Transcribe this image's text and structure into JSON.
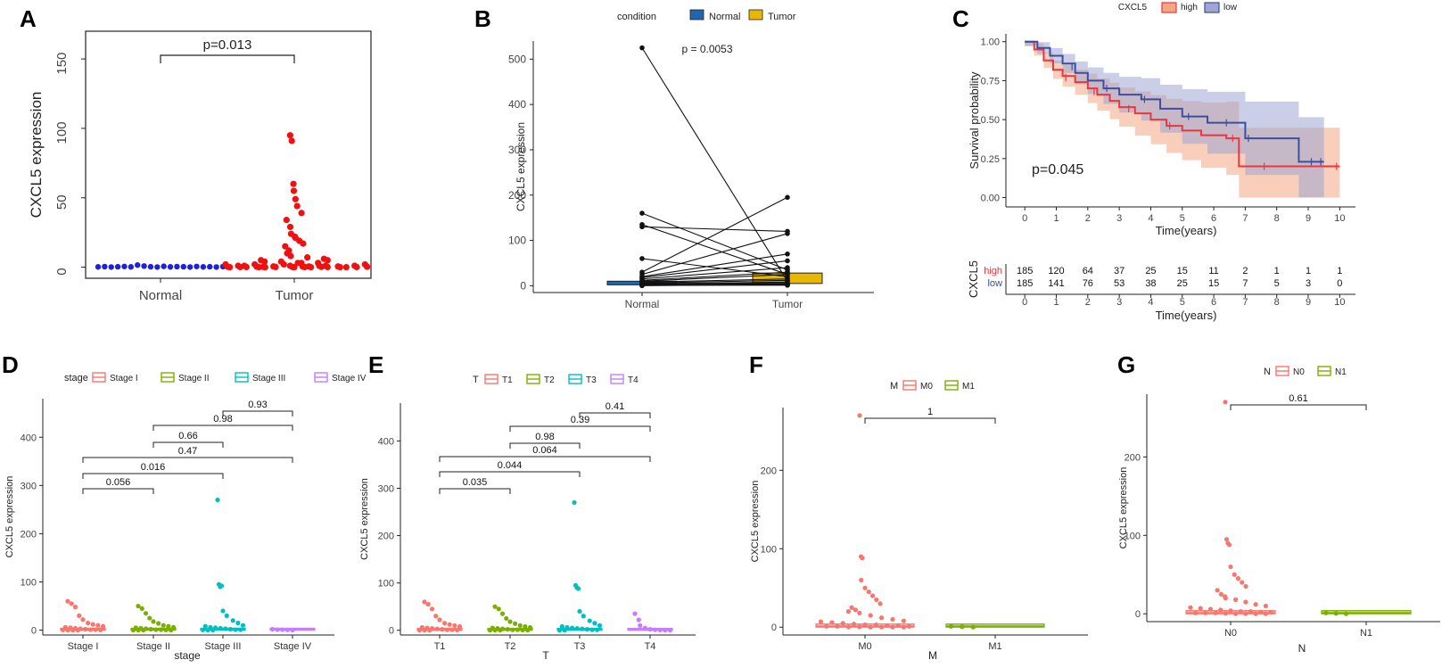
{
  "colors": {
    "blue": "#1f1fe0",
    "red": "#f01010",
    "normal_fill": "#2166ac",
    "tumor_fill": "#e6b800",
    "km_high": "#e8373f",
    "km_low": "#3b4fa0",
    "km_high_band": "#f4a582",
    "km_low_band": "#9fa6d4",
    "g1": "#f8766d",
    "g2": "#7cae00",
    "g3": "#00bfc4",
    "g4": "#c77cff"
  },
  "chart_data": [
    {
      "panel": "A",
      "type": "scatter",
      "title": "",
      "xlabel": "",
      "ylabel": "CXCL5 expression",
      "categories": [
        "Normal",
        "Tumor"
      ],
      "ylim": [
        -8,
        170
      ],
      "yticks": [
        0,
        50,
        100,
        150
      ],
      "pvalue_label": "p=0.013",
      "normal_values": [
        0.2,
        0.4,
        0.1,
        0.3,
        0.5,
        0.2,
        1.5,
        0.8,
        0.3,
        0.1,
        0.6,
        0.2,
        0.4,
        0.3,
        0.1,
        0.5,
        0.2,
        0.3,
        0.1,
        0.4
      ],
      "tumor_values": [
        95,
        91,
        60,
        55,
        49,
        44,
        39,
        34,
        29,
        24,
        22,
        21,
        19,
        17,
        15,
        12,
        10,
        8,
        7,
        6,
        5,
        5,
        4,
        4,
        3,
        3,
        3,
        2,
        2,
        2,
        2,
        1,
        1,
        1,
        1,
        1,
        1,
        0.5,
        0.5,
        0.5,
        0.5,
        0.3,
        0.3,
        0.3,
        0.2,
        0.2,
        0.2,
        0.1,
        0.1,
        0.1,
        0.1,
        0.1,
        0.1,
        0,
        0,
        0,
        0,
        0,
        0,
        0
      ]
    },
    {
      "panel": "B",
      "type": "line",
      "title": "",
      "xlabel": "",
      "ylabel": "CXCL5 expression",
      "categories": [
        "Normal",
        "Tumor"
      ],
      "legend_title": "condition",
      "legend": [
        "Normal",
        "Tumor"
      ],
      "ylim": [
        -15,
        540
      ],
      "yticks": [
        0,
        100,
        200,
        300,
        400,
        500
      ],
      "pvalue_label": "p = 0.0053",
      "box_normal": [
        2,
        10
      ],
      "box_tumor": [
        5,
        28
      ],
      "pairs": [
        [
          525,
          10
        ],
        [
          160,
          35
        ],
        [
          135,
          25
        ],
        [
          130,
          120
        ],
        [
          60,
          20
        ],
        [
          30,
          195
        ],
        [
          25,
          115
        ],
        [
          20,
          70
        ],
        [
          18,
          55
        ],
        [
          15,
          40
        ],
        [
          12,
          30
        ],
        [
          10,
          25
        ],
        [
          8,
          15
        ],
        [
          6,
          12
        ],
        [
          5,
          5
        ],
        [
          4,
          8
        ],
        [
          3,
          2
        ],
        [
          2,
          4
        ],
        [
          1,
          1
        ],
        [
          0,
          3
        ]
      ]
    },
    {
      "panel": "C",
      "type": "line",
      "title": "",
      "xlabel": "Time(years)",
      "ylabel": "Survival probability",
      "legend_title": "CXCL5",
      "legend": [
        "high",
        "low"
      ],
      "xlim": [
        0,
        10
      ],
      "xticks": [
        0,
        1,
        2,
        3,
        4,
        5,
        6,
        7,
        8,
        9,
        10
      ],
      "ylim": [
        0,
        1
      ],
      "yticks": [
        "0.00",
        "0.25",
        "0.50",
        "0.75",
        "1.00"
      ],
      "pvalue_label": "p=0.045",
      "high_steps": [
        [
          0,
          1.0
        ],
        [
          0.3,
          0.95
        ],
        [
          0.6,
          0.88
        ],
        [
          0.9,
          0.82
        ],
        [
          1.2,
          0.78
        ],
        [
          1.6,
          0.74
        ],
        [
          2.0,
          0.7
        ],
        [
          2.3,
          0.66
        ],
        [
          2.7,
          0.62
        ],
        [
          3.0,
          0.58
        ],
        [
          3.5,
          0.54
        ],
        [
          4.0,
          0.5
        ],
        [
          4.5,
          0.46
        ],
        [
          5.0,
          0.43
        ],
        [
          5.6,
          0.4
        ],
        [
          6.4,
          0.38
        ],
        [
          6.8,
          0.2
        ],
        [
          10,
          0.2
        ]
      ],
      "low_steps": [
        [
          0,
          1.0
        ],
        [
          0.4,
          0.96
        ],
        [
          0.8,
          0.91
        ],
        [
          1.2,
          0.86
        ],
        [
          1.6,
          0.8
        ],
        [
          2.0,
          0.75
        ],
        [
          2.5,
          0.7
        ],
        [
          3.0,
          0.66
        ],
        [
          3.7,
          0.63
        ],
        [
          4.3,
          0.57
        ],
        [
          5.0,
          0.52
        ],
        [
          5.8,
          0.48
        ],
        [
          7.0,
          0.38
        ],
        [
          8.7,
          0.23
        ],
        [
          9.5,
          0.23
        ]
      ],
      "risk_table": {
        "title": "CXCL5",
        "xlabel": "Time(years)",
        "rows": [
          {
            "label": "high",
            "counts": [
              "185",
              "120",
              "64",
              "37",
              "25",
              "15",
              "11",
              "2",
              "1",
              "1",
              "1"
            ]
          },
          {
            "label": "low",
            "counts": [
              "185",
              "141",
              "76",
              "53",
              "38",
              "25",
              "15",
              "7",
              "5",
              "3",
              "0"
            ]
          }
        ]
      }
    },
    {
      "panel": "D",
      "type": "scatter",
      "title": "",
      "xlabel": "stage",
      "ylabel": "CXCL5 expression",
      "legend_title": "stage",
      "legend": [
        "Stage I",
        "Stage II",
        "Stage III",
        "Stage IV"
      ],
      "categories": [
        "Stage I",
        "Stage II",
        "Stage III",
        "Stage IV"
      ],
      "ylim": [
        -10,
        480
      ],
      "yticks": [
        0,
        100,
        200,
        300,
        400
      ],
      "comparisons": [
        {
          "from": 2,
          "to": 3,
          "label": "0.93"
        },
        {
          "from": 1,
          "to": 3,
          "label": "0.98"
        },
        {
          "from": 1,
          "to": 2,
          "label": "0.66"
        },
        {
          "from": 0,
          "to": 3,
          "label": "0.47"
        },
        {
          "from": 0,
          "to": 2,
          "label": "0.016"
        },
        {
          "from": 0,
          "to": 1,
          "label": "0.056"
        }
      ],
      "values": [
        [
          60,
          55,
          48,
          30,
          22,
          15,
          12,
          10,
          8,
          6,
          5,
          4,
          3,
          2,
          1,
          1,
          0.5,
          0.5,
          0,
          0,
          0
        ],
        [
          50,
          45,
          35,
          25,
          18,
          14,
          10,
          8,
          6,
          5,
          4,
          3,
          2,
          1,
          1,
          0.5,
          0,
          0,
          0,
          0
        ],
        [
          270,
          95,
          90,
          92,
          40,
          30,
          20,
          15,
          10,
          8,
          6,
          5,
          4,
          3,
          2,
          1,
          1,
          0.5,
          0,
          0
        ],
        [
          2,
          1,
          1,
          0.5,
          0
        ]
      ]
    },
    {
      "panel": "E",
      "type": "scatter",
      "title": "",
      "xlabel": "T",
      "ylabel": "CXCL5 expression",
      "legend_title": "T",
      "legend": [
        "T1",
        "T2",
        "T3",
        "T4"
      ],
      "categories": [
        "T1",
        "T2",
        "T3",
        "T4"
      ],
      "ylim": [
        -10,
        480
      ],
      "yticks": [
        0,
        100,
        200,
        300,
        400
      ],
      "comparisons": [
        {
          "from": 2,
          "to": 3,
          "label": "0.41"
        },
        {
          "from": 1,
          "to": 3,
          "label": "0.39"
        },
        {
          "from": 1,
          "to": 2,
          "label": "0.98"
        },
        {
          "from": 0,
          "to": 3,
          "label": "0.064"
        },
        {
          "from": 0,
          "to": 2,
          "label": "0.044"
        },
        {
          "from": 0,
          "to": 1,
          "label": "0.035"
        }
      ],
      "values": [
        [
          60,
          55,
          45,
          30,
          22,
          15,
          12,
          10,
          8,
          6,
          5,
          4,
          3,
          2,
          1,
          1,
          0.5,
          0,
          0,
          0
        ],
        [
          50,
          45,
          35,
          25,
          18,
          14,
          10,
          8,
          6,
          5,
          4,
          3,
          2,
          1,
          1,
          0.5,
          0,
          0,
          0,
          0
        ],
        [
          270,
          95,
          90,
          88,
          40,
          30,
          20,
          15,
          10,
          8,
          6,
          5,
          4,
          3,
          2,
          1,
          1,
          0,
          0
        ],
        [
          35,
          22,
          10,
          5,
          2,
          1,
          0.5,
          0,
          0
        ]
      ]
    },
    {
      "panel": "F",
      "type": "scatter",
      "title": "",
      "xlabel": "M",
      "ylabel": "CXCL5 expression",
      "legend_title": "M",
      "legend": [
        "M0",
        "M1"
      ],
      "categories": [
        "M0",
        "M1"
      ],
      "ylim": [
        -10,
        280
      ],
      "yticks": [
        0,
        100,
        200
      ],
      "comparisons": [
        {
          "from": 0,
          "to": 1,
          "label": "1"
        }
      ],
      "values": [
        [
          270,
          90,
          88,
          60,
          50,
          45,
          40,
          35,
          30,
          25,
          22,
          20,
          18,
          15,
          12,
          10,
          8,
          7,
          6,
          5,
          4,
          3,
          3,
          2,
          2,
          1,
          1,
          1,
          0.5,
          0.5,
          0,
          0,
          0,
          0
        ],
        [
          1,
          0.5,
          0
        ]
      ]
    },
    {
      "panel": "G",
      "type": "scatter",
      "title": "",
      "xlabel": "N",
      "ylabel": "CXCL5 expression",
      "legend_title": "N",
      "legend": [
        "N0",
        "N1"
      ],
      "categories": [
        "N0",
        "N1"
      ],
      "ylim": [
        -10,
        280
      ],
      "yticks": [
        0,
        100,
        200
      ],
      "comparisons": [
        {
          "from": 0,
          "to": 1,
          "label": "0.61"
        }
      ],
      "values": [
        [
          270,
          95,
          90,
          88,
          60,
          50,
          45,
          40,
          35,
          30,
          25,
          22,
          20,
          18,
          15,
          12,
          10,
          8,
          7,
          6,
          5,
          4,
          3,
          3,
          2,
          2,
          1,
          1,
          1,
          0.5,
          0,
          0,
          0,
          0
        ],
        [
          1,
          0.5,
          0
        ]
      ]
    }
  ]
}
